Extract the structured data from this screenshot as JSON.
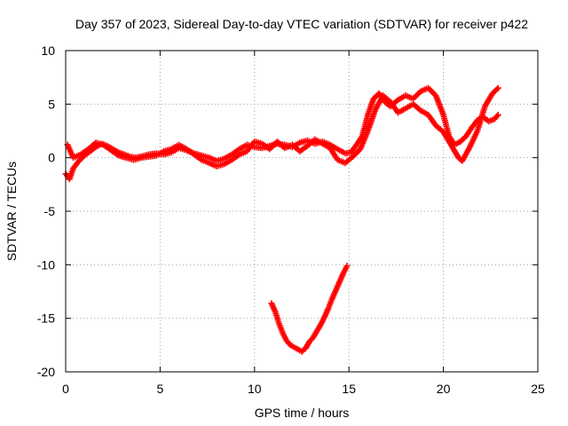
{
  "chart_data": {
    "type": "scatter",
    "title": "Day 357 of 2023, Sidereal Day-to-day VTEC variation (SDTVAR) for receiver p422",
    "xlabel": "GPS time / hours",
    "ylabel": "SDTVAR / TECUs",
    "xlim": [
      0,
      25
    ],
    "ylim": [
      -20,
      10
    ],
    "x_ticks": [
      0,
      5,
      10,
      15,
      20,
      25
    ],
    "y_ticks": [
      -20,
      -15,
      -10,
      -5,
      0,
      5,
      10
    ],
    "grid": true,
    "marker": "plus",
    "series": [
      {
        "name": "main-track-a",
        "color": "#ff0000",
        "x": [
          0.0,
          0.2,
          0.4,
          0.7,
          1.0,
          1.3,
          1.6,
          1.9,
          2.2,
          2.5,
          2.8,
          3.1,
          3.4,
          3.7,
          4.0,
          4.4,
          4.8,
          5.2,
          5.6,
          6.0,
          6.4,
          6.8,
          7.2,
          7.6,
          8.0,
          8.4,
          8.8,
          9.2,
          9.6,
          10.0,
          10.4,
          10.8,
          11.2,
          11.6,
          12.0,
          12.4,
          12.8,
          13.2,
          13.6,
          14.0,
          14.4,
          14.8,
          15.1,
          15.4,
          15.7,
          16.0,
          16.3,
          16.6,
          16.9,
          17.2,
          17.6,
          18.0,
          18.4,
          18.8,
          19.2,
          19.6,
          20.0,
          20.3,
          20.6,
          20.9,
          21.2,
          21.5,
          21.8,
          22.1,
          22.4,
          22.7,
          22.9
        ],
        "y": [
          -1.5,
          -2.0,
          -1.0,
          -0.3,
          0.2,
          0.6,
          1.0,
          1.3,
          1.1,
          0.8,
          0.5,
          0.3,
          0.1,
          0.0,
          0.1,
          0.3,
          0.4,
          0.3,
          0.5,
          0.9,
          0.7,
          0.4,
          0.2,
          0.0,
          -0.3,
          -0.1,
          0.3,
          0.8,
          1.2,
          1.0,
          0.9,
          1.1,
          1.3,
          1.2,
          1.0,
          1.4,
          1.6,
          1.3,
          1.5,
          1.2,
          0.8,
          0.4,
          0.5,
          1.2,
          2.0,
          4.0,
          5.5,
          6.0,
          5.2,
          4.8,
          5.4,
          5.8,
          5.5,
          6.2,
          6.5,
          5.8,
          4.0,
          2.0,
          1.2,
          1.5,
          2.0,
          2.8,
          3.5,
          3.8,
          3.4,
          3.6,
          4.0
        ]
      },
      {
        "name": "main-track-b",
        "color": "#ff0000",
        "x": [
          0.1,
          0.4,
          0.8,
          1.2,
          1.6,
          2.0,
          2.4,
          2.8,
          3.2,
          3.6,
          4.0,
          4.4,
          4.8,
          5.2,
          5.6,
          6.0,
          6.4,
          6.8,
          7.2,
          7.6,
          8.0,
          8.4,
          8.8,
          9.2,
          9.6,
          10.0,
          10.4,
          10.8,
          11.2,
          11.6,
          12.0,
          12.4,
          12.8,
          13.2,
          13.6,
          14.0,
          14.4,
          14.8,
          15.2,
          15.6,
          16.0,
          16.4,
          16.8,
          17.2,
          17.6,
          18.0,
          18.4,
          18.8,
          19.2,
          19.6,
          20.0,
          20.4,
          20.8,
          21.0,
          21.4,
          21.8,
          22.2,
          22.6,
          22.9
        ],
        "y": [
          1.2,
          0.0,
          0.3,
          0.8,
          1.4,
          1.2,
          0.7,
          0.2,
          0.0,
          -0.2,
          0.0,
          0.1,
          0.2,
          0.6,
          0.8,
          1.2,
          0.8,
          0.3,
          -0.2,
          -0.5,
          -0.8,
          -0.6,
          -0.2,
          0.3,
          0.6,
          1.5,
          1.3,
          0.8,
          1.5,
          0.9,
          1.2,
          0.6,
          1.1,
          1.7,
          1.3,
          0.9,
          -0.2,
          -0.5,
          0.1,
          0.8,
          2.5,
          4.5,
          5.8,
          5.2,
          4.2,
          4.6,
          5.0,
          4.4,
          4.0,
          3.0,
          2.4,
          1.2,
          0.0,
          -0.3,
          1.0,
          2.5,
          4.8,
          6.0,
          6.5
        ]
      },
      {
        "name": "dip-segment",
        "color": "#ff0000",
        "x": [
          10.9,
          11.1,
          11.3,
          11.5,
          11.7,
          11.9,
          12.1,
          12.3,
          12.5,
          12.7,
          12.9,
          13.1,
          13.3,
          13.5,
          13.7,
          13.9,
          14.1,
          14.3,
          14.5,
          14.7,
          14.9
        ],
        "y": [
          -13.6,
          -14.4,
          -15.5,
          -16.4,
          -17.1,
          -17.5,
          -17.7,
          -17.9,
          -18.1,
          -17.8,
          -17.2,
          -16.8,
          -16.2,
          -15.6,
          -14.9,
          -14.1,
          -13.2,
          -12.4,
          -11.6,
          -10.8,
          -10.1
        ]
      }
    ]
  }
}
